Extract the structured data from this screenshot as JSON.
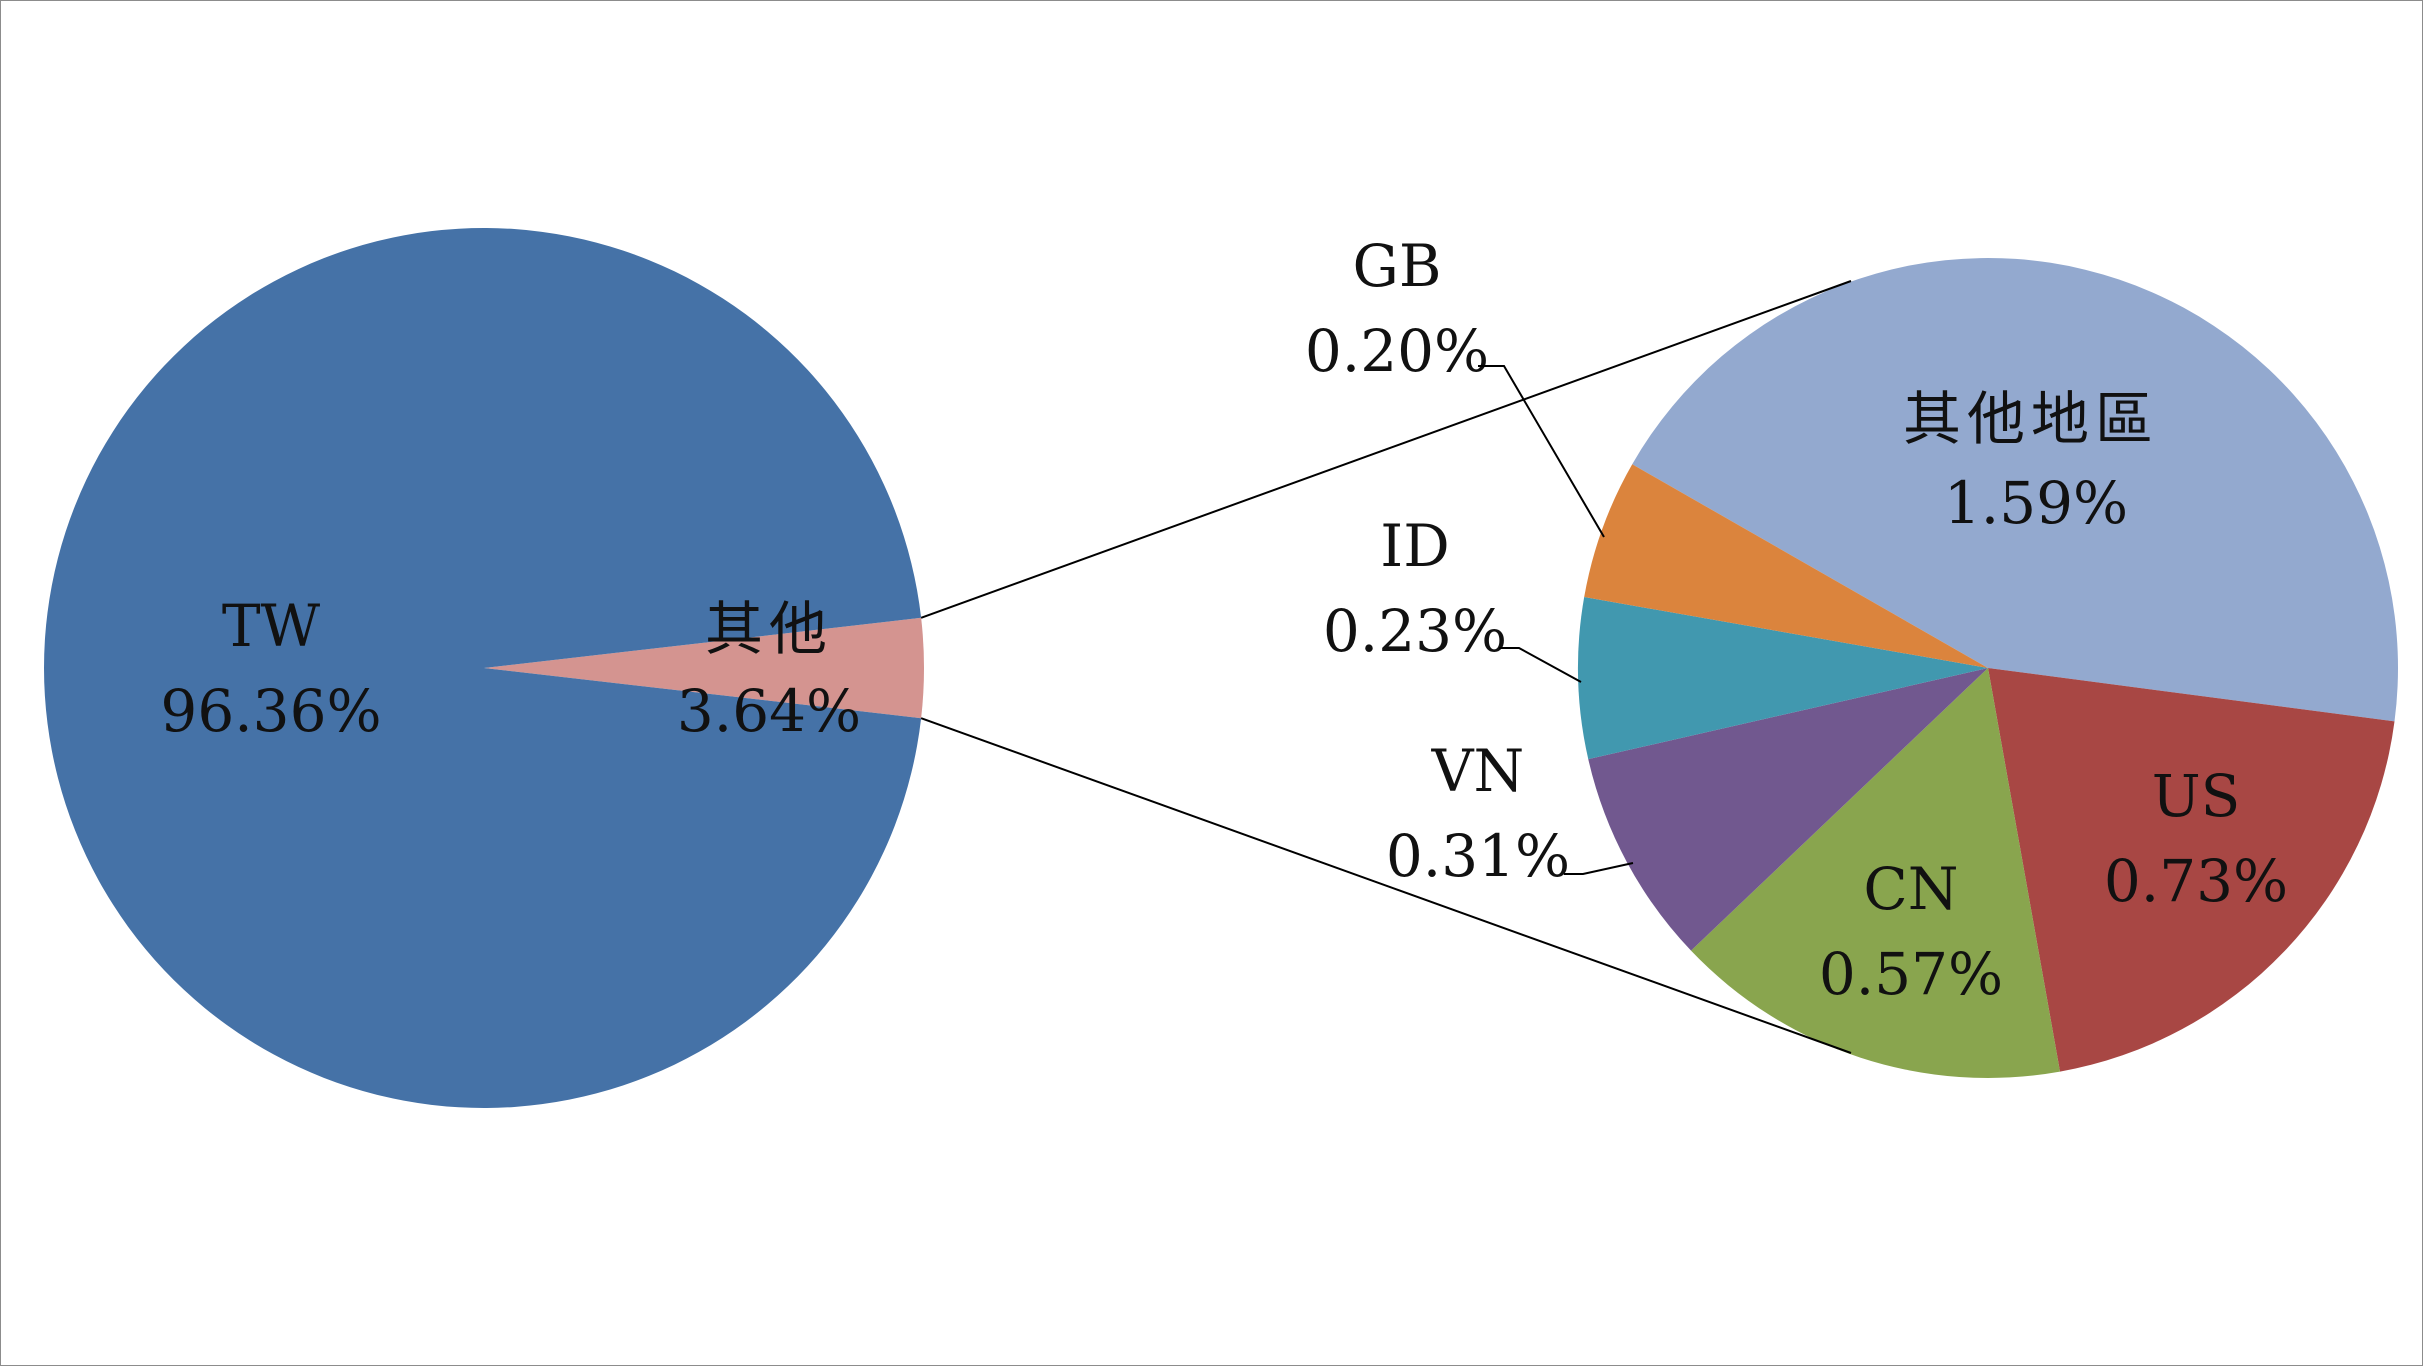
{
  "chart_data": [
    {
      "type": "pie",
      "title": "",
      "slices": [
        {
          "name": "TW",
          "value": 96.36,
          "label": "96.36%",
          "color": "#4572a7"
        },
        {
          "name": "其他",
          "value": 3.64,
          "label": "3.64%",
          "color": "#d49490"
        }
      ]
    },
    {
      "type": "pie",
      "title": "",
      "breakdown_of": "其他",
      "slices": [
        {
          "name": "其他地區",
          "value": 1.59,
          "label": "1.59%",
          "color": "#93a9cf"
        },
        {
          "name": "US",
          "value": 0.73,
          "label": "0.73%",
          "color": "#a84744"
        },
        {
          "name": "CN",
          "value": 0.57,
          "label": "0.57%",
          "color": "#89a54e"
        },
        {
          "name": "VN",
          "value": 0.31,
          "label": "0.31%",
          "color": "#71588f"
        },
        {
          "name": "ID",
          "value": 0.23,
          "label": "0.23%",
          "color": "#4198af"
        },
        {
          "name": "GB",
          "value": 0.2,
          "label": "0.20%",
          "color": "#db843d"
        }
      ]
    }
  ]
}
